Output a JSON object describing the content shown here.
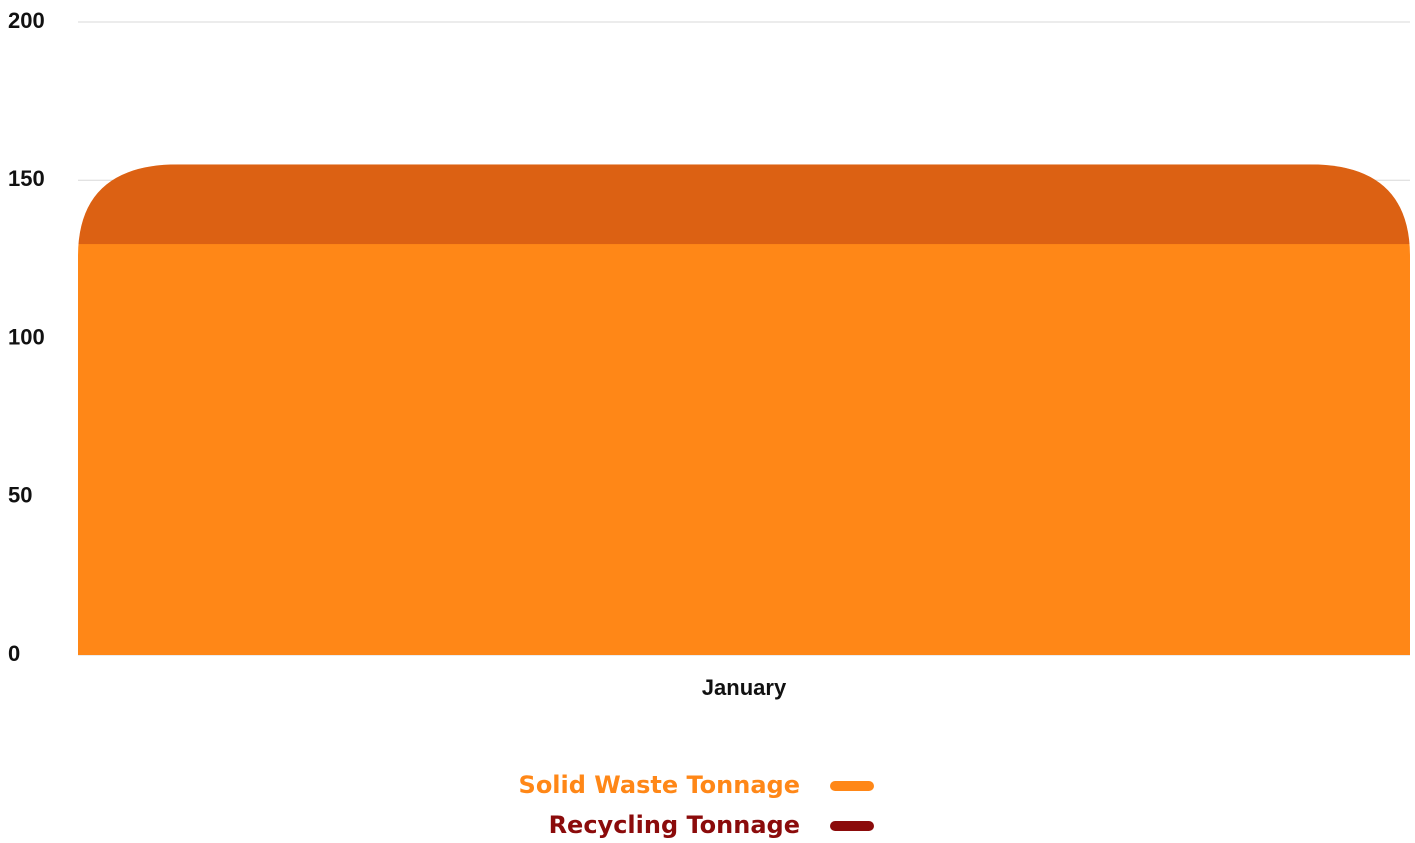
{
  "chart_data": {
    "type": "stacked_bar",
    "categories": [
      "January"
    ],
    "series": [
      {
        "name": "Solid Waste Tonnage",
        "color": "#ff8717",
        "values": [
          130
        ]
      },
      {
        "name": "Recycling Tonnage",
        "color": "#8b0b0b",
        "values": [
          25
        ]
      }
    ],
    "ylim": [
      0,
      200
    ],
    "yticks": [
      0,
      50,
      100,
      150,
      200
    ],
    "grid": true,
    "legend": "bottom"
  }
}
